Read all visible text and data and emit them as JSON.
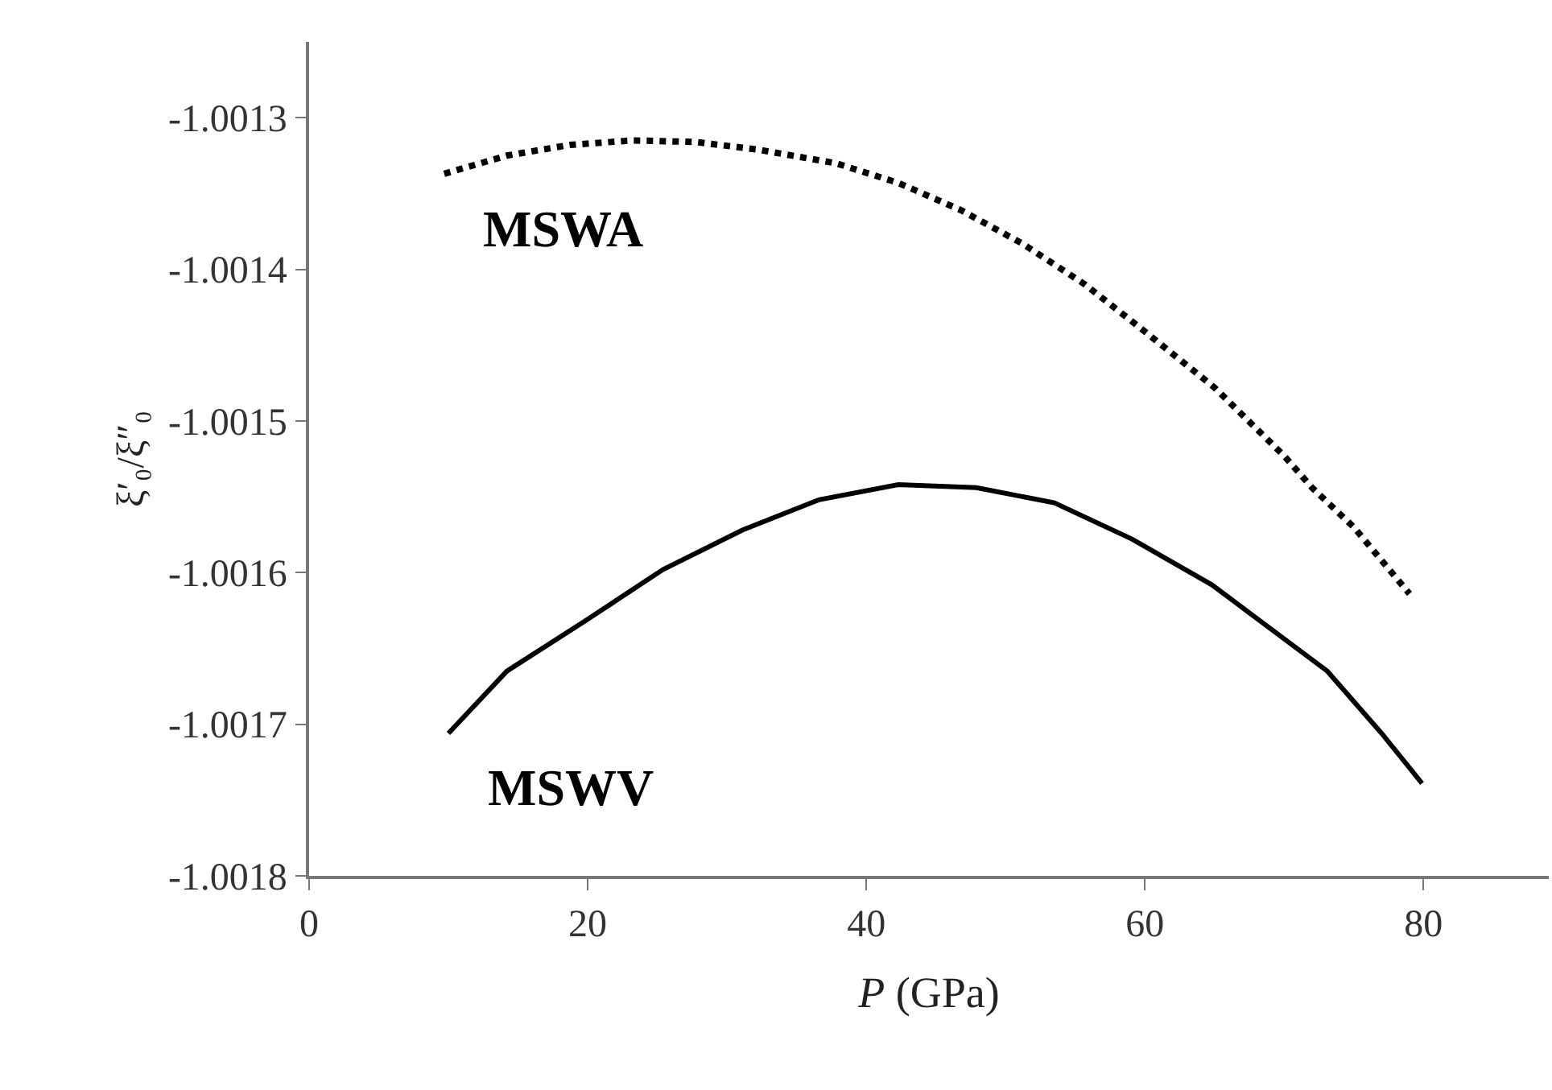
{
  "chart_data": {
    "type": "line",
    "xlabel": "P (GPa)",
    "ylabel": "ξ′₀/ξ″₀",
    "xlim": [
      0,
      89
    ],
    "xticks": [
      0,
      20,
      40,
      60,
      80
    ],
    "ylim": [
      -1.0018,
      -1.00125
    ],
    "yticks": [
      -1.0018,
      -1.0017,
      -1.0016,
      -1.0015,
      -1.0014,
      -1.0013
    ],
    "legend": false,
    "marker": "none",
    "series": [
      {
        "name": "MSWA",
        "color": "#000000",
        "line_style": "dotted",
        "x": [
          9.7,
          14.2,
          18.7,
          23.2,
          27.7,
          32.2,
          37.8,
          42.3,
          46.8,
          51.2,
          55.7,
          60,
          65,
          70,
          72,
          75,
          79
        ],
        "values": [
          -1.001337,
          -1.001325,
          -1.001318,
          -1.001315,
          -1.001316,
          -1.001321,
          -1.00133,
          -1.001343,
          -1.001361,
          -1.001383,
          -1.00141,
          -1.001441,
          -1.001478,
          -1.001523,
          -1.001544,
          -1.00157,
          -1.001614
        ]
      },
      {
        "name": "MSWV",
        "color": "#000000",
        "line_style": "solid",
        "x": [
          10,
          14.2,
          19.8,
          25.4,
          31.1,
          36.6,
          42.3,
          47.9,
          53.5,
          59.1,
          64.8,
          73.1,
          77,
          79.9
        ],
        "values": [
          -1.001706,
          -1.001665,
          -1.001632,
          -1.001598,
          -1.001572,
          -1.001552,
          -1.001542,
          -1.001544,
          -1.001554,
          -1.001578,
          -1.001608,
          -1.001665,
          -1.001706,
          -1.001739
        ]
      }
    ]
  }
}
